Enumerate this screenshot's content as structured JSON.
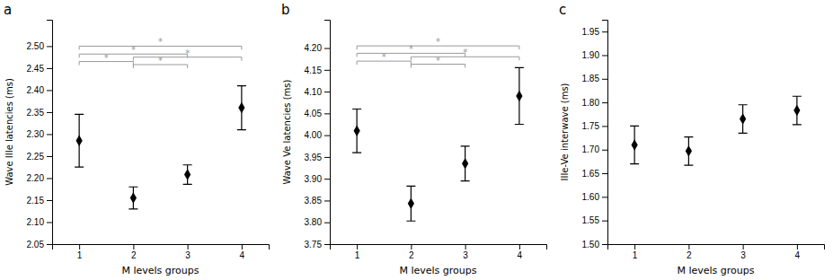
{
  "chart_data": [
    {
      "type": "scatter",
      "title": "a",
      "x_label": "M levels groups",
      "y_label": "Wave IIIe latencies (ms)",
      "x": [
        1,
        2,
        3,
        4
      ],
      "values": [
        2.285,
        2.155,
        2.208,
        2.36
      ],
      "errors": [
        0.06,
        0.025,
        0.022,
        0.05
      ],
      "color": "black",
      "marker": "diamond",
      "grid": false,
      "xlim": [
        0.5,
        4.5
      ],
      "xticks": [
        1,
        2,
        3,
        4
      ],
      "ylim": [
        2.05,
        2.56
      ],
      "yticks": [
        2.05,
        {
          "value": 2.1,
          "label": "2.10"
        },
        2.15,
        {
          "value": 2.2,
          "label": "2.20"
        },
        2.25,
        {
          "value": 2.3,
          "label": "2.30"
        },
        2.35,
        {
          "value": 2.4,
          "label": "2.40"
        },
        2.45,
        {
          "value": 2.5,
          "label": "2.50"
        }
      ],
      "annotations": [
        {
          "text": "*",
          "x1": 1,
          "x2": 2,
          "y": 2.465,
          "color": "#999999"
        },
        {
          "text": "*",
          "x1": 1,
          "x2": 3,
          "y": 2.482,
          "color": "#999999"
        },
        {
          "text": "*",
          "x1": 2,
          "x2": 3,
          "y": 2.458,
          "color": "#999999"
        },
        {
          "text": "*",
          "x1": 2,
          "x2": 4,
          "y": 2.475,
          "color": "#999999"
        },
        {
          "text": "*",
          "x1": 1,
          "x2": 4,
          "y": 2.5,
          "color": "#999999"
        }
      ]
    },
    {
      "type": "scatter",
      "title": "b",
      "x_label": "M levels groups",
      "y_label": "Wave Ve latencies (ms)",
      "x": [
        1,
        2,
        3,
        4
      ],
      "values": [
        4.01,
        3.843,
        3.935,
        4.09
      ],
      "errors": [
        0.05,
        0.04,
        0.04,
        0.065
      ],
      "color": "black",
      "marker": "diamond",
      "grid": false,
      "xlim": [
        0.5,
        4.5
      ],
      "xticks": [
        1,
        2,
        3,
        4
      ],
      "ylim": [
        3.75,
        4.265
      ],
      "yticks": [
        3.75,
        {
          "value": 3.8,
          "label": "3.80"
        },
        3.85,
        {
          "value": 3.9,
          "label": "3.90"
        },
        3.95,
        {
          "value": 4.0,
          "label": "4.00"
        },
        4.05,
        {
          "value": 4.1,
          "label": "4.10"
        },
        4.15,
        {
          "value": 4.2,
          "label": "4.20"
        }
      ],
      "annotations": [
        {
          "text": "*",
          "x1": 1,
          "x2": 2,
          "y": 4.17,
          "color": "#999999"
        },
        {
          "text": "*",
          "x1": 1,
          "x2": 3,
          "y": 4.188,
          "color": "#999999"
        },
        {
          "text": "*",
          "x1": 2,
          "x2": 3,
          "y": 4.163,
          "color": "#999999"
        },
        {
          "text": "*",
          "x1": 2,
          "x2": 4,
          "y": 4.18,
          "color": "#999999"
        },
        {
          "text": "*",
          "x1": 1,
          "x2": 4,
          "y": 4.205,
          "color": "#999999"
        }
      ]
    },
    {
      "type": "scatter",
      "title": "c",
      "x_label": "M levels groups",
      "y_label": "IIIe-Ve interwave (ms)",
      "x": [
        1,
        2,
        3,
        4
      ],
      "values": [
        1.71,
        1.697,
        1.765,
        1.783
      ],
      "errors": [
        0.04,
        0.03,
        0.03,
        0.03
      ],
      "color": "black",
      "marker": "diamond",
      "grid": false,
      "xlim": [
        0.5,
        4.5
      ],
      "xticks": [
        1,
        2,
        3,
        4
      ],
      "ylim": [
        1.5,
        1.975
      ],
      "yticks": [
        {
          "value": 1.5,
          "label": "1.50"
        },
        1.55,
        {
          "value": 1.6,
          "label": "1.60"
        },
        1.65,
        {
          "value": 1.7,
          "label": "1.70"
        },
        1.75,
        {
          "value": 1.8,
          "label": "1.80"
        },
        1.85,
        {
          "value": 1.9,
          "label": "1.90"
        },
        1.95
      ]
    }
  ]
}
